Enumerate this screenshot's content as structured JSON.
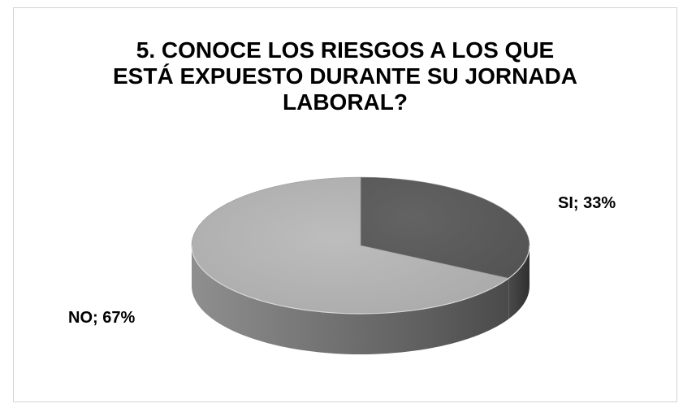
{
  "chart_data": {
    "type": "pie",
    "title_lines": [
      "5. CONOCE LOS RIESGOS A LOS QUE",
      "ESTÁ EXPUESTO DURANTE SU JORNADA",
      "LABORAL?"
    ],
    "categories": [
      "SI",
      "NO"
    ],
    "values": [
      33,
      67
    ],
    "labels": [
      "SI; 33%",
      "NO; 67%"
    ],
    "style": "3d",
    "colors": {
      "SI": "#5a5a5a",
      "NO": "#b5b5b5"
    }
  }
}
